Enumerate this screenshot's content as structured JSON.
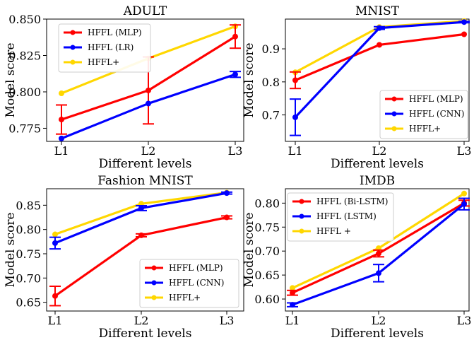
{
  "figure": {
    "xlabel": "Different levels",
    "ylabel": "Model score"
  },
  "colors": {
    "red": "#ff0000",
    "blue": "#0000ff",
    "gold": "#ffd700"
  },
  "chart_data": [
    {
      "type": "line",
      "title": "ADULT",
      "xlabel": "Different levels",
      "ylabel": "Model score",
      "categories": [
        "L1",
        "L2",
        "L3"
      ],
      "ylim": [
        0.766,
        0.85
      ],
      "yticks": [
        0.775,
        0.8,
        0.825,
        0.85
      ],
      "ytick_labels": [
        "0.775",
        "0.800",
        "0.825",
        "0.850"
      ],
      "legend_position": "top-left",
      "series": [
        {
          "name": "HFFL (MLP)",
          "color": "#ff0000",
          "values": [
            0.781,
            0.801,
            0.838
          ],
          "err": [
            0.01,
            0.023,
            0.008
          ]
        },
        {
          "name": "HFFL (LR)",
          "color": "#0000ff",
          "values": [
            0.768,
            0.792,
            0.812
          ],
          "err": [
            0.0,
            0.0,
            0.002
          ]
        },
        {
          "name": "HFFL+",
          "color": "#ffd700",
          "values": [
            0.799,
            0.823,
            0.845
          ],
          "err": null
        }
      ]
    },
    {
      "type": "line",
      "title": "MNIST",
      "xlabel": "Different levels",
      "ylabel": "Model score",
      "categories": [
        "L1",
        "L2",
        "L3"
      ],
      "ylim": [
        0.62,
        0.99
      ],
      "yticks": [
        0.7,
        0.8,
        0.9
      ],
      "ytick_labels": [
        "0.7",
        "0.8",
        "0.9"
      ],
      "legend_position": "bottom-right",
      "series": [
        {
          "name": "HFFL (MLP)",
          "color": "#ff0000",
          "values": [
            0.805,
            0.912,
            0.944
          ],
          "err": [
            0.025,
            0.0,
            0.0
          ]
        },
        {
          "name": "HFFL (CNN)",
          "color": "#0000ff",
          "values": [
            0.693,
            0.963,
            0.981
          ],
          "err": [
            0.055,
            0.004,
            0.002
          ]
        },
        {
          "name": "HFFL+",
          "color": "#ffd700",
          "values": [
            0.829,
            0.966,
            0.984
          ],
          "err": null
        }
      ]
    },
    {
      "type": "line",
      "title": "Fashion MNIST",
      "xlabel": "Different levels",
      "ylabel": "Model score",
      "categories": [
        "L1",
        "L2",
        "L3"
      ],
      "ylim": [
        0.632,
        0.884
      ],
      "yticks": [
        0.65,
        0.7,
        0.75,
        0.8,
        0.85
      ],
      "ytick_labels": [
        "0.65",
        "0.70",
        "0.75",
        "0.80",
        "0.85"
      ],
      "legend_position": "bottom-right",
      "series": [
        {
          "name": "HFFL (MLP)",
          "color": "#ff0000",
          "values": [
            0.663,
            0.788,
            0.825
          ],
          "err": [
            0.02,
            0.003,
            0.003
          ]
        },
        {
          "name": "HFFL (CNN)",
          "color": "#0000ff",
          "values": [
            0.772,
            0.844,
            0.875
          ],
          "err": [
            0.012,
            0.005,
            0.002
          ]
        },
        {
          "name": "HFFL+",
          "color": "#ffd700",
          "values": [
            0.79,
            0.853,
            0.876
          ],
          "err": null
        }
      ]
    },
    {
      "type": "line",
      "title": "IMDB",
      "xlabel": "Different levels",
      "ylabel": "Model score",
      "categories": [
        "L1",
        "L2",
        "L3"
      ],
      "ylim": [
        0.575,
        0.83
      ],
      "yticks": [
        0.6,
        0.65,
        0.7,
        0.75,
        0.8
      ],
      "ytick_labels": [
        "0.60",
        "0.65",
        "0.70",
        "0.75",
        "0.80"
      ],
      "legend_position": "top-left",
      "series": [
        {
          "name": "HFFL (Bi-LSTM)",
          "color": "#ff0000",
          "values": [
            0.613,
            0.695,
            0.8
          ],
          "err": [
            0.005,
            0.007,
            0.006
          ]
        },
        {
          "name": "HFFL (LSTM)",
          "color": "#0000ff",
          "values": [
            0.588,
            0.654,
            0.798
          ],
          "err": [
            0.004,
            0.018,
            0.012
          ]
        },
        {
          "name": "HFFL +",
          "color": "#ffd700",
          "values": [
            0.623,
            0.706,
            0.82
          ],
          "err": null
        }
      ]
    }
  ]
}
